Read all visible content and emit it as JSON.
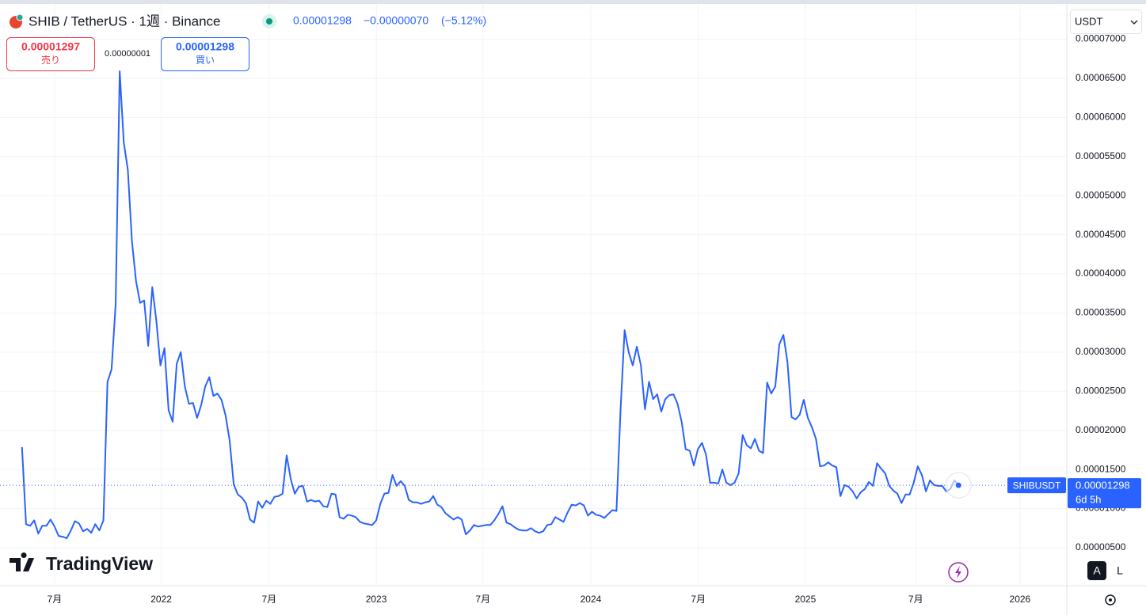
{
  "header": {
    "symbol": "SHIB / TetherUS · 1週 · Binance",
    "price": "0.00001298",
    "change": "−0.00000070",
    "change_pct": "(−5.12%)",
    "sell_price": "0.00001297",
    "sell_label": "売り",
    "spread": "0.00000001",
    "buy_price": "0.00001298",
    "buy_label": "買い",
    "currency": "USDT"
  },
  "price_tag": {
    "countdown": "6d 5h"
  },
  "toolbar": {
    "auto": "A",
    "log": "L"
  },
  "logo": "TradingView",
  "chart_data": {
    "type": "line",
    "series": [
      {
        "name": "SHIBUSDT",
        "color": "#2962ff",
        "values": [
          1.785e-05,
          8e-06,
          7.8e-06,
          8.5e-06,
          6.8e-06,
          7.8e-06,
          7.8e-06,
          8.6e-06,
          7.7e-06,
          6.5e-06,
          6.4e-06,
          6.2e-06,
          7.2e-06,
          8.4e-06,
          8.1e-06,
          7.1e-06,
          7.4e-06,
          6.9e-06,
          8e-06,
          7.2e-06,
          8.5e-06,
          2.62e-05,
          2.78e-05,
          3.61e-05,
          6.59e-05,
          5.68e-05,
          5.33e-05,
          4.42e-05,
          3.91e-05,
          3.63e-05,
          3.66e-05,
          3.08e-05,
          3.83e-05,
          3.4e-05,
          2.83e-05,
          3.05e-05,
          2.26e-05,
          2.11e-05,
          2.85e-05,
          3e-05,
          2.56e-05,
          2.34e-05,
          2.35e-05,
          2.16e-05,
          2.32e-05,
          2.56e-05,
          2.68e-05,
          2.44e-05,
          2.47e-05,
          2.39e-05,
          2.19e-05,
          1.87e-05,
          1.31e-05,
          1.18e-05,
          1.14e-05,
          1.07e-05,
          8.6e-06,
          8.2e-06,
          1.09e-05,
          1.01e-05,
          1.1e-05,
          1.06e-05,
          1.15e-05,
          1.16e-05,
          1.19e-05,
          1.68e-05,
          1.38e-05,
          1.19e-05,
          1.28e-05,
          1.29e-05,
          1.09e-05,
          1.11e-05,
          1.09e-05,
          1.1e-05,
          1.03e-05,
          1.02e-05,
          1.19e-05,
          1.18e-05,
          8.9e-06,
          8.7e-06,
          9.2e-06,
          9.1e-06,
          8.9e-06,
          8.3e-06,
          8.1e-06,
          8e-06,
          7.9e-06,
          8.5e-06,
          1.06e-05,
          1.19e-05,
          1.2e-05,
          1.43e-05,
          1.29e-05,
          1.35e-05,
          1.29e-05,
          1.11e-05,
          1.08e-05,
          1.08e-05,
          1.06e-05,
          1.08e-05,
          1.09e-05,
          1.16e-05,
          1.05e-05,
          1.02e-05,
          9.4e-06,
          9e-06,
          8.6e-06,
          8.9e-06,
          8.6e-06,
          6.7e-06,
          7.2e-06,
          7.9e-06,
          7.7e-06,
          7.8e-06,
          7.9e-06,
          7.9e-06,
          8.5e-06,
          9.3e-06,
          1.03e-05,
          8.2e-06,
          8e-06,
          7.6e-06,
          7.3e-06,
          7.2e-06,
          7.2e-06,
          7.5e-06,
          7.1e-06,
          6.9e-06,
          7.1e-06,
          7.9e-06,
          8e-06,
          8.9e-06,
          8.6e-06,
          8.3e-06,
          9.5e-06,
          1.05e-05,
          1.04e-05,
          1.07e-05,
          1.04e-05,
          9.1e-06,
          9.6e-06,
          9.2e-06,
          9.1e-06,
          8.8e-06,
          9.3e-06,
          9.8e-06,
          9.7e-06,
          2.26e-05,
          3.28e-05,
          3e-05,
          2.83e-05,
          3.07e-05,
          2.83e-05,
          2.27e-05,
          2.62e-05,
          2.4e-05,
          2.46e-05,
          2.24e-05,
          2.4e-05,
          2.45e-05,
          2.46e-05,
          2.34e-05,
          2.11e-05,
          1.76e-05,
          1.74e-05,
          1.55e-05,
          1.76e-05,
          1.84e-05,
          1.69e-05,
          1.33e-05,
          1.33e-05,
          1.32e-05,
          1.5e-05,
          1.33e-05,
          1.3e-05,
          1.33e-05,
          1.45e-05,
          1.94e-05,
          1.81e-05,
          1.77e-05,
          1.89e-05,
          1.74e-05,
          1.71e-05,
          2.61e-05,
          2.47e-05,
          2.56e-05,
          3.1e-05,
          3.22e-05,
          2.87e-05,
          2.17e-05,
          2.14e-05,
          2.2e-05,
          2.39e-05,
          2.16e-05,
          2.04e-05,
          1.89e-05,
          1.54e-05,
          1.55e-05,
          1.59e-05,
          1.55e-05,
          1.53e-05,
          1.16e-05,
          1.3e-05,
          1.28e-05,
          1.22e-05,
          1.13e-05,
          1.21e-05,
          1.25e-05,
          1.34e-05,
          1.29e-05,
          1.58e-05,
          1.51e-05,
          1.45e-05,
          1.29e-05,
          1.23e-05,
          1.19e-05,
          1.07e-05,
          1.18e-05,
          1.18e-05,
          1.33e-05,
          1.54e-05,
          1.43e-05,
          1.22e-05,
          1.36e-05,
          1.3e-05,
          1.29e-05,
          1.29e-05,
          1.22e-05,
          1.25e-05,
          1.36e-05,
          1.298e-05
        ]
      }
    ],
    "xlim": [
      -5.4,
      256.6
    ],
    "xticks": [
      {
        "value": 8.0,
        "label": "7月"
      },
      {
        "value": 34.2,
        "label": "2022"
      },
      {
        "value": 60.7,
        "label": "7月"
      },
      {
        "value": 87.0,
        "label": "2023"
      },
      {
        "value": 113.2,
        "label": "7月"
      },
      {
        "value": 139.7,
        "label": "2024"
      },
      {
        "value": 166.1,
        "label": "7月"
      },
      {
        "value": 192.4,
        "label": "2025"
      },
      {
        "value": 219.5,
        "label": "7月"
      },
      {
        "value": 245.1,
        "label": "2026"
      }
    ],
    "ylim": [
      1.4e-07,
      7.45e-05
    ],
    "yticks": [
      {
        "value": 5e-06,
        "label": "0.00000500"
      },
      {
        "value": 1e-05,
        "label": "0.00001000"
      },
      {
        "value": 1.5e-05,
        "label": "0.00001500"
      },
      {
        "value": 2e-05,
        "label": "0.00002000"
      },
      {
        "value": 2.5e-05,
        "label": "0.00002500"
      },
      {
        "value": 3e-05,
        "label": "0.00003000"
      },
      {
        "value": 3.5e-05,
        "label": "0.00003500"
      },
      {
        "value": 4e-05,
        "label": "0.00004000"
      },
      {
        "value": 4.5e-05,
        "label": "0.00004500"
      },
      {
        "value": 5e-05,
        "label": "0.00005000"
      },
      {
        "value": 5.5e-05,
        "label": "0.00005500"
      },
      {
        "value": 6e-05,
        "label": "0.00006000"
      },
      {
        "value": 6.5e-05,
        "label": "0.00006500"
      },
      {
        "value": 7e-05,
        "label": "0.00007000"
      }
    ],
    "grid": true
  }
}
